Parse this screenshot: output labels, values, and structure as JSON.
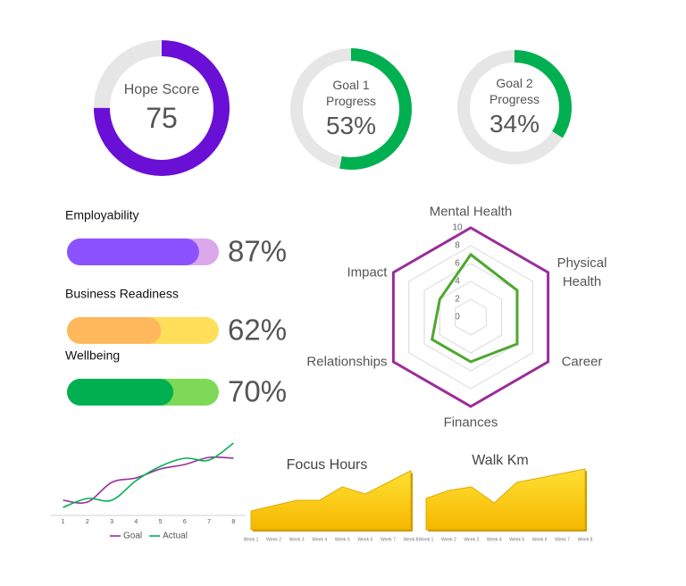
{
  "chart_data": [
    {
      "type": "donut",
      "title": "Hope Score",
      "value": 75,
      "ylim": [
        0,
        100
      ],
      "color": "#6a0fd6",
      "track_color": "#e6e6e6"
    },
    {
      "type": "donut",
      "title": "Goal 1 Progress",
      "value": 53,
      "value_label": "53%",
      "ylim": [
        0,
        100
      ],
      "color": "#00b050",
      "track_color": "#e6e6e6"
    },
    {
      "type": "donut",
      "title": "Goal 2 Progress",
      "value": 34,
      "value_label": "34%",
      "ylim": [
        0,
        100
      ],
      "color": "#00b050",
      "track_color": "#e6e6e6"
    },
    {
      "type": "progress",
      "categories": [
        "Employability",
        "Business Readiness",
        "Wellbeing"
      ],
      "values": [
        87,
        62,
        70
      ],
      "value_labels": [
        "87%",
        "62%",
        "70%"
      ],
      "xlim": [
        0,
        100
      ],
      "colors": [
        "#8c52ff",
        "#ffb85c",
        "#00b050"
      ],
      "track_colors": [
        "#dba8ec",
        "#ffde59",
        "#7ed957"
      ]
    },
    {
      "type": "radar",
      "categories": [
        "Mental Health",
        "Physical Health",
        "Career",
        "Finances",
        "Relationships",
        "Impact"
      ],
      "rlim": [
        0,
        10
      ],
      "rticks": [
        0,
        2,
        4,
        6,
        8,
        10
      ],
      "grid": true,
      "series": [
        {
          "color": "#9b2d9b",
          "values": [
            10,
            10,
            10,
            10,
            10,
            10
          ]
        },
        {
          "color": "#4ea72e",
          "values": [
            7,
            6,
            6,
            5,
            5,
            4
          ]
        }
      ]
    },
    {
      "type": "line",
      "x": [
        1,
        2,
        3,
        4,
        5,
        6,
        7,
        8
      ],
      "xlim": [
        0.5,
        8.5
      ],
      "xticks": [
        1,
        2,
        3,
        4,
        5,
        6,
        7,
        8
      ],
      "ylim": [
        0,
        9
      ],
      "legend": "bottom",
      "series": [
        {
          "name": "Goal",
          "color": "#9b2d9b",
          "values": [
            1.7,
            1.5,
            3.7,
            4.2,
            5.2,
            5.7,
            6.5,
            6.4
          ]
        },
        {
          "name": "Actual",
          "color": "#00b050",
          "values": [
            0.9,
            1.9,
            1.7,
            3.9,
            5.5,
            6.4,
            6.2,
            8.1
          ]
        }
      ]
    },
    {
      "type": "area",
      "title": "Focus Hours",
      "categories": [
        "Week 1",
        "Week 2",
        "Week 3",
        "Week 4",
        "Week 5",
        "Week 6",
        "Week 7",
        "Week 8"
      ],
      "values": [
        21,
        27,
        33,
        33,
        48,
        40,
        53,
        66
      ],
      "ylim": [
        0,
        70
      ],
      "color": "#ffd000"
    },
    {
      "type": "area",
      "title": "Walk Km",
      "categories": [
        "Week 1",
        "Week 2",
        "Week 3",
        "Week 4",
        "Week 5",
        "Week 6",
        "Week 7",
        "Week 8"
      ],
      "values": [
        35,
        44,
        48,
        30,
        53,
        58,
        63,
        68
      ],
      "ylim": [
        0,
        70
      ],
      "color": "#ffd000"
    }
  ]
}
